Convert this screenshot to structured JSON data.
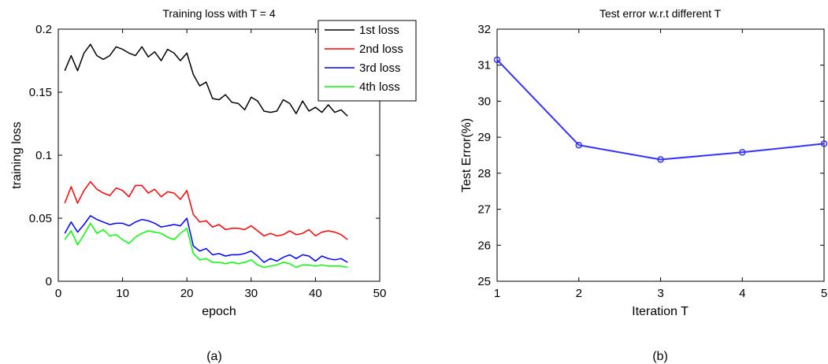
{
  "chart_data": [
    {
      "type": "line",
      "title": "Training loss with T = 4",
      "xlabel": "epoch",
      "ylabel": "training loss",
      "xlim": [
        0,
        50
      ],
      "ylim": [
        0,
        0.2
      ],
      "xticks": [
        "0",
        "10",
        "20",
        "30",
        "40",
        "50"
      ],
      "yticks": [
        "0",
        "0.05",
        "0.1",
        "0.15",
        "0.2"
      ],
      "xtick_values": [
        0,
        10,
        20,
        30,
        40,
        50
      ],
      "ytick_values": [
        0,
        0.05,
        0.1,
        0.15,
        0.2
      ],
      "legend_position": "top-right",
      "caption": "(a)",
      "grid": false,
      "x": [
        1,
        2,
        3,
        4,
        5,
        6,
        7,
        8,
        9,
        10,
        11,
        12,
        13,
        14,
        15,
        16,
        17,
        18,
        19,
        20,
        21,
        22,
        23,
        24,
        25,
        26,
        27,
        28,
        29,
        30,
        31,
        32,
        33,
        34,
        35,
        36,
        37,
        38,
        39,
        40,
        41,
        42,
        43,
        44,
        45
      ],
      "series": [
        {
          "name": "1st loss",
          "color": "#000000",
          "values": [
            0.167,
            0.179,
            0.167,
            0.181,
            0.188,
            0.179,
            0.176,
            0.179,
            0.186,
            0.184,
            0.181,
            0.179,
            0.186,
            0.178,
            0.182,
            0.175,
            0.184,
            0.181,
            0.175,
            0.181,
            0.164,
            0.155,
            0.158,
            0.145,
            0.144,
            0.148,
            0.142,
            0.141,
            0.136,
            0.146,
            0.143,
            0.135,
            0.134,
            0.135,
            0.144,
            0.141,
            0.133,
            0.143,
            0.135,
            0.138,
            0.134,
            0.14,
            0.134,
            0.136,
            0.131
          ]
        },
        {
          "name": "2nd loss",
          "color": "#ff0000",
          "values": [
            0.062,
            0.075,
            0.062,
            0.072,
            0.079,
            0.073,
            0.07,
            0.068,
            0.074,
            0.072,
            0.067,
            0.076,
            0.076,
            0.07,
            0.073,
            0.067,
            0.071,
            0.07,
            0.065,
            0.072,
            0.053,
            0.047,
            0.048,
            0.043,
            0.045,
            0.041,
            0.042,
            0.042,
            0.041,
            0.044,
            0.04,
            0.036,
            0.038,
            0.036,
            0.037,
            0.04,
            0.037,
            0.038,
            0.041,
            0.036,
            0.039,
            0.04,
            0.039,
            0.037,
            0.033
          ]
        },
        {
          "name": "3rd loss",
          "color": "#0000ff",
          "values": [
            0.038,
            0.047,
            0.039,
            0.045,
            0.052,
            0.049,
            0.047,
            0.045,
            0.046,
            0.046,
            0.044,
            0.047,
            0.049,
            0.048,
            0.046,
            0.043,
            0.044,
            0.045,
            0.044,
            0.05,
            0.028,
            0.024,
            0.026,
            0.021,
            0.022,
            0.02,
            0.021,
            0.021,
            0.022,
            0.024,
            0.02,
            0.015,
            0.018,
            0.016,
            0.019,
            0.021,
            0.018,
            0.021,
            0.02,
            0.016,
            0.02,
            0.018,
            0.017,
            0.018,
            0.015
          ]
        },
        {
          "name": "4th loss",
          "color": "#00ff00",
          "values": [
            0.033,
            0.04,
            0.029,
            0.037,
            0.046,
            0.038,
            0.041,
            0.036,
            0.037,
            0.033,
            0.03,
            0.035,
            0.038,
            0.04,
            0.039,
            0.038,
            0.035,
            0.033,
            0.038,
            0.042,
            0.022,
            0.017,
            0.018,
            0.015,
            0.015,
            0.014,
            0.015,
            0.014,
            0.015,
            0.017,
            0.013,
            0.011,
            0.012,
            0.013,
            0.015,
            0.014,
            0.011,
            0.013,
            0.013,
            0.012,
            0.013,
            0.012,
            0.012,
            0.012,
            0.011
          ]
        }
      ]
    },
    {
      "type": "line",
      "title": "Test error w.r.t different T",
      "xlabel": "Iteration T",
      "ylabel": "Test Error(%)",
      "xlim": [
        1,
        5
      ],
      "ylim": [
        25,
        32
      ],
      "xticks": [
        "1",
        "2",
        "3",
        "4",
        "5"
      ],
      "yticks": [
        "25",
        "26",
        "27",
        "28",
        "29",
        "30",
        "31",
        "32"
      ],
      "xtick_values": [
        1,
        2,
        3,
        4,
        5
      ],
      "ytick_values": [
        25,
        26,
        27,
        28,
        29,
        30,
        31,
        32
      ],
      "caption": "(b)",
      "grid": false,
      "x": [
        1,
        2,
        3,
        4,
        5
      ],
      "series": [
        {
          "color": "#3333ff",
          "marker": "circle",
          "values": [
            31.15,
            28.78,
            28.38,
            28.58,
            28.82
          ]
        }
      ]
    }
  ]
}
